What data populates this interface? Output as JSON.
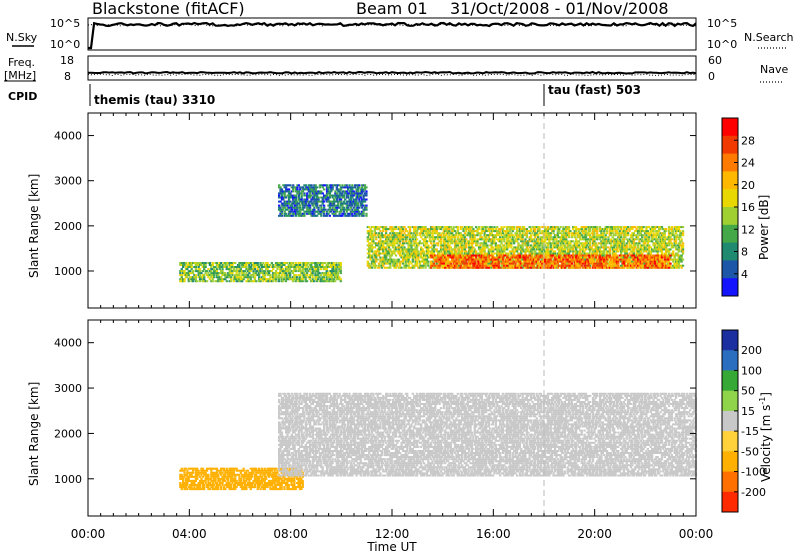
{
  "header": {
    "radar": "Blackstone (fitACF)",
    "beam": "Beam 01",
    "dates": "31/Oct/2008 - 01/Nov/2008"
  },
  "sky_panel": {
    "left_label": "N.Sky",
    "left_ticks": [
      "10^5",
      "10^0"
    ],
    "right_ticks": [
      "10^5",
      "10^0"
    ],
    "right_label": "N.Search"
  },
  "freq_panel": {
    "left_label_1": "Freq.",
    "left_label_2": "[MHz]",
    "left_ticks": [
      "18",
      "8"
    ],
    "right_ticks": [
      "60",
      "0"
    ],
    "right_label": "Nave"
  },
  "cpid_panel": {
    "label": "CPID",
    "mode_1": "themis (tau) 3310",
    "mode_2": "tau (fast) 503",
    "mode_2_start_hour": 18
  },
  "power_colorbar": {
    "label": "Power [dB]",
    "ticks": [
      "28",
      "24",
      "20",
      "16",
      "12",
      "8",
      "4"
    ],
    "colors": [
      "#ff0000",
      "#f03a00",
      "#ff7a00",
      "#ffb800",
      "#e8d800",
      "#9fcf30",
      "#45a848",
      "#1f8a70",
      "#1c56a8",
      "#1414ff"
    ]
  },
  "velocity_colorbar": {
    "label": "Velocity [m s^-1]",
    "label_main": "Velocity [m s",
    "label_sup": "-1",
    "label_end": "]",
    "ticks": [
      "200",
      "100",
      "50",
      "15",
      "-15",
      "-50",
      "-100",
      "-200"
    ],
    "colors": [
      "#1c2fa0",
      "#2a6ec0",
      "#35a835",
      "#8fd44a",
      "#c8c8c8",
      "#ffd23c",
      "#ffb000",
      "#ff7000",
      "#ff2a00"
    ]
  },
  "x_axis": {
    "title": "Time UT",
    "ticks": [
      "00:00",
      "04:00",
      "08:00",
      "12:00",
      "16:00",
      "20:00",
      "00:00"
    ]
  },
  "chart_data": [
    {
      "type": "heatmap",
      "title": "Power",
      "xlabel": "Time UT",
      "ylabel": "Slant Range [km]",
      "x_ticks": [
        "00:00",
        "04:00",
        "08:00",
        "12:00",
        "16:00",
        "20:00",
        "00:00"
      ],
      "y_ticks": [
        1000,
        2000,
        3000,
        4000
      ],
      "xlim_hours": [
        0,
        24
      ],
      "ylim_km": [
        180,
        4500
      ],
      "colorbar_label": "Power [dB]",
      "colorbar_ticks": [
        28,
        24,
        20,
        16,
        12,
        8,
        4
      ],
      "echo_bands": [
        {
          "t_start": 3.6,
          "t_end": 10.0,
          "range_start_km": 750,
          "range_end_km": 1200,
          "value": 14
        },
        {
          "t_start": 7.5,
          "t_end": 11.0,
          "range_start_km": 2200,
          "range_end_km": 2900,
          "value": 8
        },
        {
          "t_start": 11.0,
          "t_end": 23.5,
          "range_start_km": 1050,
          "range_end_km": 2000,
          "value": 16
        },
        {
          "t_start": 13.5,
          "t_end": 23.0,
          "range_start_km": 1050,
          "range_end_km": 1350,
          "value": 25
        }
      ]
    },
    {
      "type": "heatmap",
      "title": "Velocity",
      "xlabel": "Time UT",
      "ylabel": "Slant Range [km]",
      "x_ticks": [
        "00:00",
        "04:00",
        "08:00",
        "12:00",
        "16:00",
        "20:00",
        "00:00"
      ],
      "y_ticks": [
        1000,
        2000,
        3000,
        4000
      ],
      "xlim_hours": [
        0,
        24
      ],
      "ylim_km": [
        180,
        4500
      ],
      "colorbar_label": "Velocity [m s^-1]",
      "colorbar_ticks": [
        200,
        100,
        50,
        15,
        -15,
        -50,
        -100,
        -200
      ],
      "echo_bands": [
        {
          "t_start": 3.6,
          "t_end": 8.5,
          "range_start_km": 750,
          "range_end_km": 1250,
          "value": -70
        },
        {
          "t_start": 7.5,
          "t_end": 24.0,
          "range_start_km": 1050,
          "range_end_km": 2900,
          "value": 0
        }
      ]
    }
  ]
}
